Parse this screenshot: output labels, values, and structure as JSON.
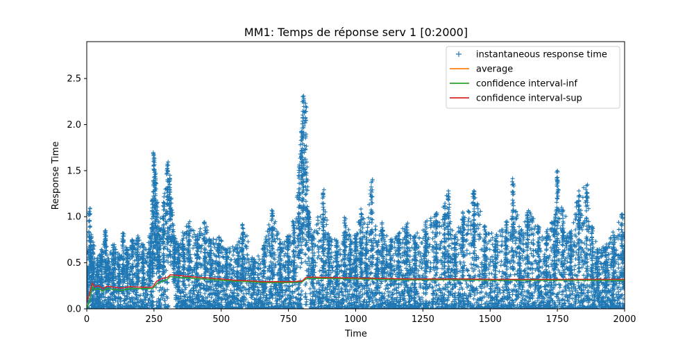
{
  "chart_data": {
    "type": "scatter",
    "title": "MM1: Temps de réponse serv 1 [0:2000]",
    "xlabel": "Time",
    "ylabel": "Response Time",
    "xlim": [
      0,
      2000
    ],
    "ylim": [
      0,
      2.9
    ],
    "x_ticks": [
      0,
      250,
      500,
      750,
      1000,
      1250,
      1500,
      1750,
      2000
    ],
    "x_tick_labels": [
      "0",
      "250",
      "500",
      "750",
      "1000",
      "1250",
      "1500",
      "1750",
      "2000"
    ],
    "y_ticks": [
      0.0,
      0.5,
      1.0,
      1.5,
      2.0,
      2.5
    ],
    "y_tick_labels": [
      "0.0",
      "0.5",
      "1.0",
      "1.5",
      "2.0",
      "2.5"
    ],
    "grid": false,
    "legend_position": "top-right",
    "series": [
      {
        "name": "instantaneous response time",
        "kind": "scatter",
        "marker": "plus",
        "color": "#1f77b4",
        "envelope_x": [
          0,
          10,
          15,
          25,
          40,
          55,
          70,
          80,
          100,
          120,
          135,
          150,
          170,
          190,
          210,
          235,
          245,
          250,
          255,
          262,
          270,
          285,
          300,
          310,
          325,
          340,
          360,
          380,
          410,
          440,
          460,
          490,
          520,
          560,
          580,
          620,
          660,
          690,
          720,
          750,
          770,
          790,
          800,
          805,
          815,
          825,
          840,
          880,
          900,
          930,
          960,
          980,
          1000,
          1020,
          1040,
          1060,
          1080,
          1100,
          1130,
          1160,
          1190,
          1220,
          1260,
          1300,
          1330,
          1345,
          1370,
          1400,
          1440,
          1480,
          1520,
          1560,
          1585,
          1610,
          1640,
          1680,
          1710,
          1740,
          1750,
          1770,
          1800,
          1830,
          1860,
          1880,
          1900,
          1930,
          1960,
          1990,
          2000
        ],
        "envelope_max": [
          0.45,
          1.1,
          0.9,
          0.7,
          0.55,
          0.65,
          0.85,
          0.55,
          0.7,
          0.6,
          0.85,
          0.65,
          0.75,
          0.8,
          0.7,
          0.8,
          1.2,
          1.72,
          1.5,
          1.3,
          0.9,
          1.2,
          1.6,
          1.45,
          0.8,
          0.7,
          0.85,
          0.95,
          0.8,
          0.98,
          0.75,
          0.8,
          0.65,
          0.7,
          0.95,
          0.55,
          0.7,
          1.1,
          0.75,
          0.8,
          1.0,
          1.6,
          2.0,
          2.35,
          2.25,
          1.05,
          0.8,
          1.3,
          0.8,
          0.75,
          1.0,
          0.85,
          0.8,
          1.1,
          0.85,
          1.42,
          0.7,
          0.95,
          0.75,
          0.85,
          0.95,
          0.8,
          0.95,
          1.05,
          1.15,
          1.3,
          0.8,
          1.05,
          1.3,
          0.9,
          0.8,
          0.95,
          1.42,
          0.85,
          1.1,
          0.9,
          0.85,
          1.0,
          1.5,
          1.1,
          0.85,
          1.3,
          1.38,
          0.9,
          0.65,
          0.7,
          0.85,
          1.1,
          0.7
        ],
        "gaps_x": [
          [
            248,
            258
          ],
          [
            305,
            330
          ],
          [
            800,
            812
          ],
          [
            820,
            830
          ]
        ]
      },
      {
        "name": "average",
        "kind": "line",
        "color": "#ff7f0e"
      },
      {
        "name": "confidence interval-inf",
        "kind": "line",
        "color": "#2ca02c",
        "x": [
          0,
          10,
          20,
          30,
          45,
          60,
          75,
          100,
          130,
          160,
          200,
          245,
          260,
          280,
          300,
          310,
          350,
          400,
          450,
          500,
          550,
          600,
          650,
          700,
          750,
          800,
          815,
          830,
          900,
          1000,
          1100,
          1200,
          1300,
          1400,
          1500,
          1600,
          1700,
          1800,
          1900,
          2000
        ],
        "y": [
          0.0,
          0.08,
          0.24,
          0.21,
          0.22,
          0.19,
          0.22,
          0.21,
          0.2,
          0.22,
          0.22,
          0.22,
          0.27,
          0.3,
          0.32,
          0.35,
          0.34,
          0.33,
          0.32,
          0.31,
          0.3,
          0.295,
          0.285,
          0.285,
          0.285,
          0.29,
          0.325,
          0.33,
          0.33,
          0.325,
          0.32,
          0.315,
          0.315,
          0.315,
          0.31,
          0.31,
          0.31,
          0.31,
          0.31,
          0.31
        ]
      },
      {
        "name": "confidence interval-sup",
        "kind": "line",
        "color": "#d62728",
        "x": [
          0,
          10,
          20,
          30,
          45,
          60,
          75,
          100,
          130,
          160,
          200,
          245,
          260,
          280,
          300,
          310,
          350,
          400,
          450,
          500,
          550,
          600,
          650,
          700,
          750,
          800,
          815,
          830,
          900,
          1000,
          1100,
          1200,
          1300,
          1400,
          1500,
          1600,
          1700,
          1800,
          1900,
          2000
        ],
        "y": [
          0.08,
          0.16,
          0.28,
          0.24,
          0.25,
          0.22,
          0.245,
          0.235,
          0.225,
          0.24,
          0.235,
          0.235,
          0.3,
          0.33,
          0.34,
          0.37,
          0.36,
          0.345,
          0.335,
          0.325,
          0.31,
          0.305,
          0.295,
          0.295,
          0.295,
          0.3,
          0.34,
          0.345,
          0.34,
          0.335,
          0.33,
          0.325,
          0.325,
          0.325,
          0.32,
          0.32,
          0.32,
          0.32,
          0.32,
          0.32
        ]
      }
    ]
  }
}
